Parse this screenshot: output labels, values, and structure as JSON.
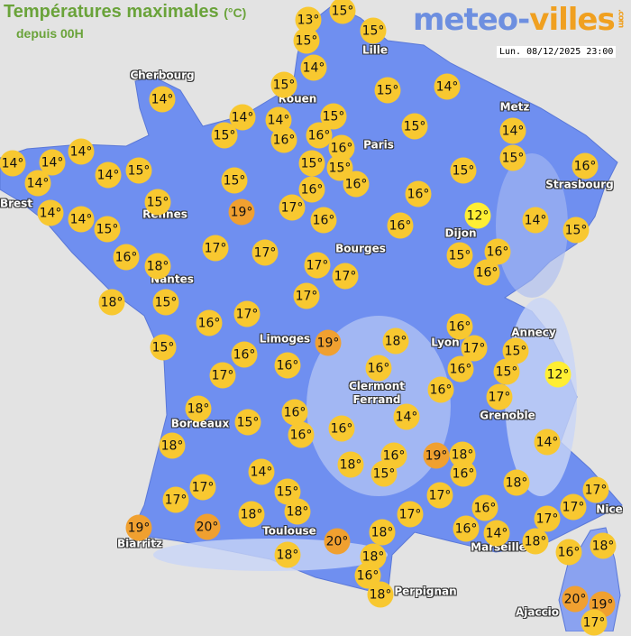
{
  "header": {
    "title": "Températures maximales",
    "unit": "(°C)",
    "subtitle": "depuis 00H",
    "logo": {
      "part1": "meteo-",
      "part2": "villes",
      "suffix": ".com"
    },
    "datetime": "Lun. 08/12/2025 23:00"
  },
  "colors": {
    "land": "#6f8ff0",
    "highland": "#b8c8f4",
    "sea": "#e3e3e3",
    "temp_cool": "#ffee33",
    "temp_mild": "#f8c830",
    "temp_warm": "#f0a030"
  },
  "cities": [
    "Cherbourg",
    "Lille",
    "Metz",
    "Rouen",
    "Paris",
    "Brest",
    "Rennes",
    "Strasbourg",
    "Dijon",
    "Bourges",
    "Nantes",
    "Annecy",
    "Limoges",
    "Lyon",
    "Clermont\nFerrand",
    "Grenoble",
    "Bordeaux",
    "Nice",
    "Toulouse",
    "Biarritz",
    "Marseille",
    "Perpignan",
    "Ajaccio"
  ],
  "temperatures": [
    13,
    15,
    15,
    15,
    14,
    15,
    15,
    14,
    14,
    14,
    14,
    15,
    16,
    16,
    16,
    15,
    15,
    14,
    15,
    16,
    14,
    14,
    14,
    14,
    14,
    15,
    15,
    15,
    16,
    15,
    15,
    16,
    16,
    15,
    14,
    14,
    15,
    19,
    17,
    16,
    16,
    12,
    14,
    15,
    16,
    18,
    17,
    17,
    17,
    17,
    15,
    16,
    16,
    18,
    15,
    17,
    16,
    17,
    15,
    19,
    18,
    16,
    17,
    15,
    15,
    12,
    16,
    17,
    16,
    16,
    16,
    16,
    17,
    18,
    16,
    15,
    16,
    16,
    14,
    18,
    14,
    18,
    16,
    15,
    19,
    18,
    16,
    14,
    15,
    17,
    17,
    17,
    18,
    17,
    17,
    17,
    16,
    16,
    14,
    17,
    19,
    20,
    18,
    18,
    18,
    20,
    18,
    16,
    18,
    18,
    18,
    16,
    18,
    20,
    19,
    17,
    19
  ],
  "temp_suffix": "°"
}
